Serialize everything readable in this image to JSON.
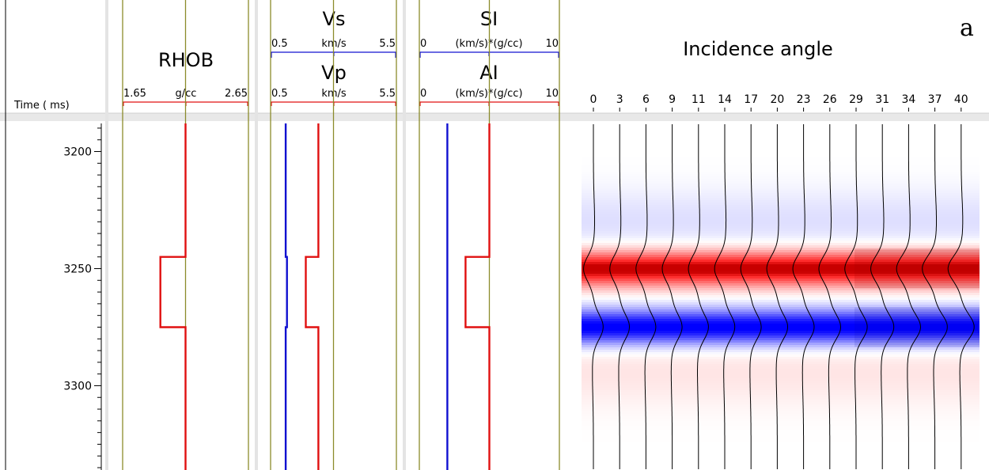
{
  "figure_label": "a",
  "colors": {
    "track_border": "#8b8b2b",
    "red_curve": "#e01010",
    "blue_curve": "#1010d0",
    "header_bg": "#e8e8e8"
  },
  "chart_data": [
    {
      "type": "line",
      "track": "time",
      "ylabel": "Time ( ms)",
      "ylim": [
        3188,
        3336
      ],
      "yticks": [
        3200,
        3250,
        3300
      ],
      "minor_tick_step": 5
    },
    {
      "type": "line",
      "track": "RHOB",
      "title": "RHOB",
      "unit": "g/cc",
      "xlim": [
        1.65,
        2.65
      ],
      "xlim_labels": [
        "1.65",
        "2.65"
      ],
      "grid_x": [
        1.65,
        2.15,
        2.65
      ],
      "series": [
        {
          "color": "red",
          "points": [
            [
              2.15,
              3188
            ],
            [
              2.15,
              3245
            ],
            [
              1.95,
              3245
            ],
            [
              1.95,
              3275
            ],
            [
              2.15,
              3275
            ],
            [
              2.15,
              3336
            ]
          ]
        }
      ]
    },
    {
      "type": "line",
      "track": "Velocity",
      "titles": [
        "Vs",
        "Vp"
      ],
      "units": [
        "km/s",
        "km/s"
      ],
      "xlim": [
        0.5,
        5.5
      ],
      "xlim_labels_vs": [
        "0.5",
        "5.5"
      ],
      "xlim_labels_vp": [
        "0.5",
        "5.5"
      ],
      "grid_x": [
        0.5,
        3.0,
        5.5
      ],
      "series": [
        {
          "name": "Vs",
          "color": "blue",
          "points": [
            [
              1.1,
              3188
            ],
            [
              1.1,
              3245
            ],
            [
              1.15,
              3245
            ],
            [
              1.15,
              3275
            ],
            [
              1.1,
              3275
            ],
            [
              1.1,
              3336
            ]
          ]
        },
        {
          "name": "Vp",
          "color": "red",
          "points": [
            [
              2.4,
              3188
            ],
            [
              2.4,
              3245
            ],
            [
              1.9,
              3245
            ],
            [
              1.9,
              3275
            ],
            [
              2.4,
              3275
            ],
            [
              2.4,
              3336
            ]
          ]
        }
      ]
    },
    {
      "type": "line",
      "track": "Impedance",
      "titles": [
        "SI",
        "AI"
      ],
      "units": [
        "(km/s)*(g/cc)",
        "(km/s)*(g/cc)"
      ],
      "xlim": [
        0,
        10
      ],
      "xlim_labels_si": [
        "0",
        "10"
      ],
      "xlim_labels_ai": [
        "0",
        "10"
      ],
      "grid_x": [
        0,
        5,
        10
      ],
      "series": [
        {
          "name": "SI",
          "color": "blue",
          "points": [
            [
              2.0,
              3188
            ],
            [
              2.0,
              3336
            ]
          ]
        },
        {
          "name": "AI",
          "color": "red",
          "points": [
            [
              5.0,
              3188
            ],
            [
              5.0,
              3245
            ],
            [
              3.3,
              3245
            ],
            [
              3.3,
              3275
            ],
            [
              5.0,
              3275
            ],
            [
              5.0,
              3336
            ]
          ]
        }
      ]
    },
    {
      "type": "heatmap",
      "track": "Gather",
      "title": "Incidence angle",
      "x": [
        0,
        3,
        6,
        9,
        11,
        14,
        17,
        20,
        23,
        26,
        29,
        31,
        34,
        37,
        40
      ],
      "xticks": [
        "0",
        "3",
        "6",
        "9",
        "11",
        "14",
        "17",
        "20",
        "23",
        "26",
        "29",
        "31",
        "34",
        "37",
        "40"
      ],
      "red_event_center_ms": 3250,
      "blue_event_center_ms": 3275,
      "event_amplitude_vs_angle": [
        0.9,
        0.9,
        0.91,
        0.91,
        0.92,
        0.93,
        0.94,
        0.96,
        0.98,
        1.0,
        1.03,
        1.06,
        1.1,
        1.15,
        1.2
      ]
    }
  ]
}
